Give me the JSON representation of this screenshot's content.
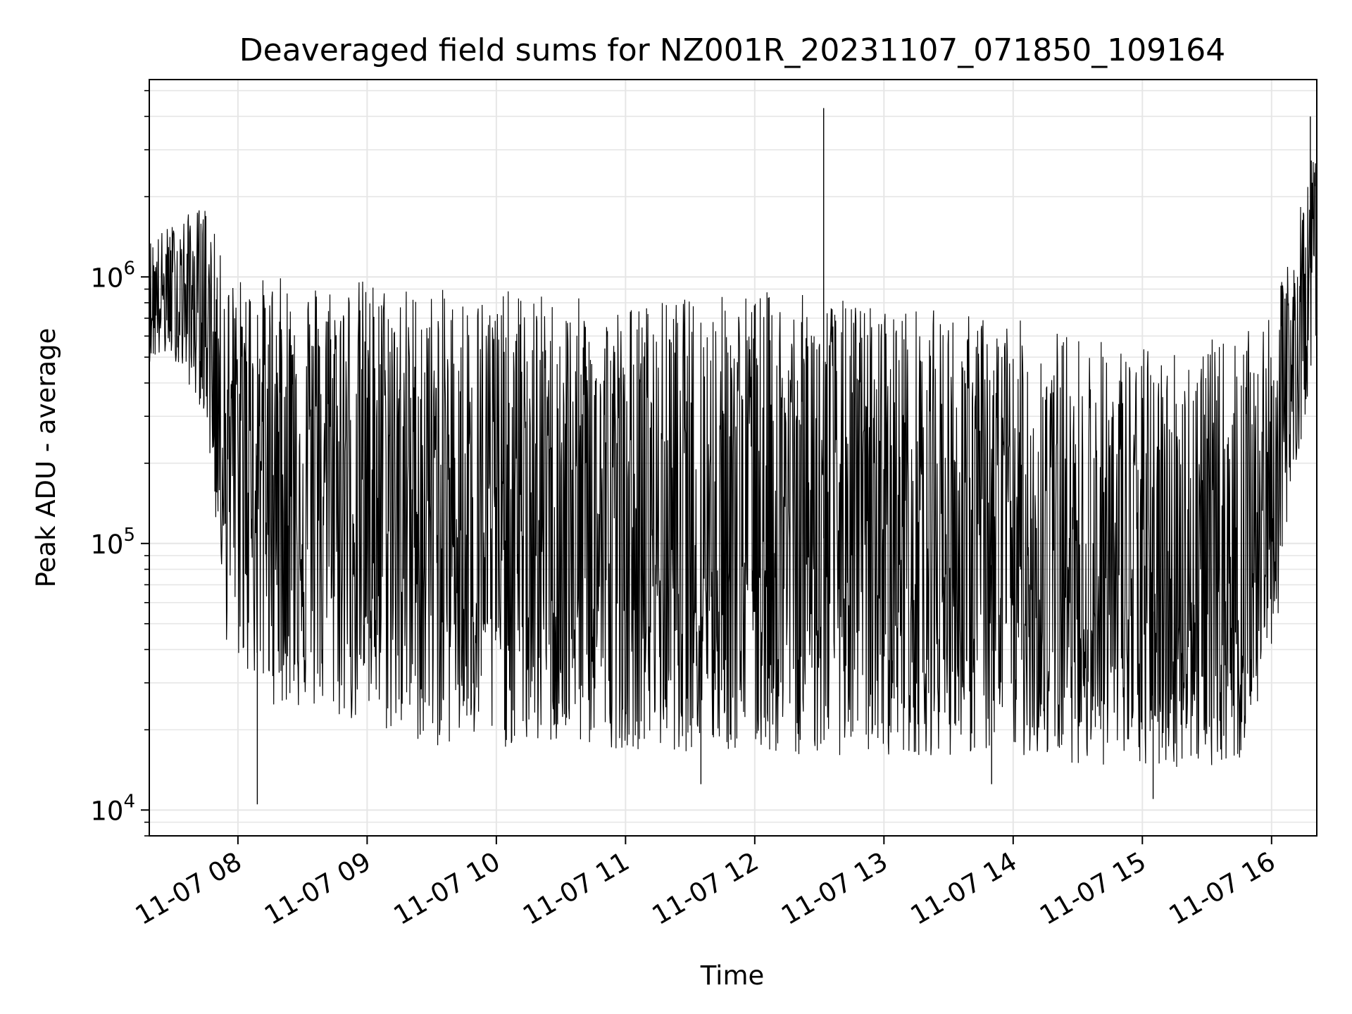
{
  "chart_data": {
    "type": "line",
    "title": "Deaveraged field sums for NZ001R_20231107_071850_109164",
    "xlabel": "Time",
    "ylabel": "Peak ADU - average",
    "yscale": "log",
    "grid": true,
    "line_color": "#000000",
    "grid_color": "#e6e6e6",
    "x_range": [
      "2023-11-07 07:18:50",
      "2023-11-07 16:21:00"
    ],
    "ylim": [
      8000,
      5500000
    ],
    "xticks": [
      {
        "at": "2023-11-07 08:00",
        "label": "11-07 08"
      },
      {
        "at": "2023-11-07 09:00",
        "label": "11-07 09"
      },
      {
        "at": "2023-11-07 10:00",
        "label": "11-07 10"
      },
      {
        "at": "2023-11-07 11:00",
        "label": "11-07 11"
      },
      {
        "at": "2023-11-07 12:00",
        "label": "11-07 12"
      },
      {
        "at": "2023-11-07 13:00",
        "label": "11-07 13"
      },
      {
        "at": "2023-11-07 14:00",
        "label": "11-07 14"
      },
      {
        "at": "2023-11-07 15:00",
        "label": "11-07 15"
      },
      {
        "at": "2023-11-07 16:00",
        "label": "11-07 16"
      }
    ],
    "yticks": [
      {
        "value": 10000,
        "base": "10",
        "exp": "4"
      },
      {
        "value": 100000,
        "base": "10",
        "exp": "5"
      },
      {
        "value": 1000000,
        "base": "10",
        "exp": "6"
      }
    ],
    "series": [
      {
        "envelope": [
          {
            "t": "07:19",
            "low": 480000,
            "high": 1400000,
            "typ": 800000
          },
          {
            "t": "07:30",
            "low": 500000,
            "high": 1600000,
            "typ": 850000
          },
          {
            "t": "07:45",
            "low": 300000,
            "high": 1900000,
            "typ": 750000
          },
          {
            "t": "07:55",
            "low": 40000,
            "high": 1000000,
            "typ": 250000
          },
          {
            "t": "08:15",
            "low": 25000,
            "high": 1000000,
            "typ": 200000
          },
          {
            "t": "09:00",
            "low": 20000,
            "high": 1000000,
            "typ": 150000
          },
          {
            "t": "09:30",
            "low": 17000,
            "high": 900000,
            "typ": 130000
          },
          {
            "t": "10:00",
            "low": 17000,
            "high": 900000,
            "typ": 110000
          },
          {
            "t": "11:00",
            "low": 17000,
            "high": 800000,
            "typ": 90000
          },
          {
            "t": "12:00",
            "low": 16000,
            "high": 900000,
            "typ": 110000
          },
          {
            "t": "13:00",
            "low": 16000,
            "high": 800000,
            "typ": 100000
          },
          {
            "t": "14:00",
            "low": 16000,
            "high": 700000,
            "typ": 80000
          },
          {
            "t": "15:00",
            "low": 14000,
            "high": 550000,
            "typ": 55000
          },
          {
            "t": "15:45",
            "low": 15000,
            "high": 600000,
            "typ": 60000
          },
          {
            "t": "16:00",
            "low": 35000,
            "high": 700000,
            "typ": 150000
          },
          {
            "t": "16:10",
            "low": 150000,
            "high": 1400000,
            "typ": 450000
          },
          {
            "t": "16:21",
            "low": 600000,
            "high": 3500000,
            "typ": 1500000
          }
        ],
        "spikes": [
          {
            "t": "08:09",
            "value": 10500
          },
          {
            "t": "12:32",
            "value": 4300000
          },
          {
            "t": "16:18",
            "value": 4000000
          },
          {
            "t": "15:05",
            "value": 11000
          },
          {
            "t": "11:35",
            "value": 12500
          },
          {
            "t": "13:50",
            "value": 12500
          }
        ]
      }
    ]
  }
}
